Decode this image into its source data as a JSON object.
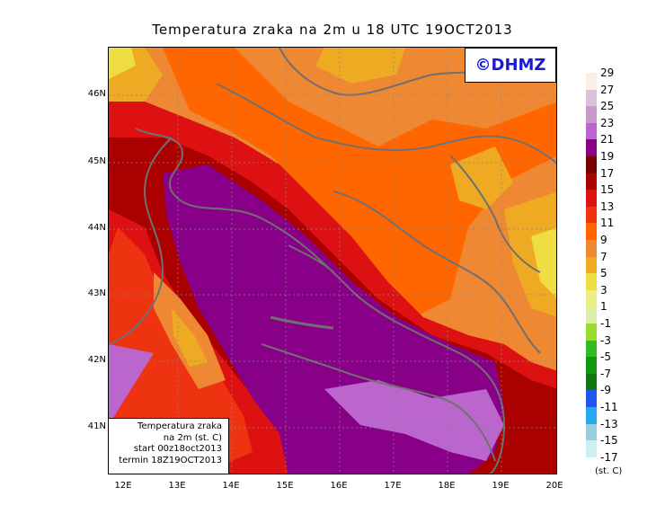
{
  "title": "Temperatura zraka na 2m u 18 UTC 19OCT2013",
  "logo": "©DHMZ",
  "infobox": {
    "line1": "Temperatura zraka",
    "line2": "na 2m (st. C)",
    "line3": "start 00z18oct2013",
    "line4": "termin 18Z19OCT2013"
  },
  "lat_labels": [
    "46N",
    "45N",
    "44N",
    "43N",
    "42N",
    "41N"
  ],
  "lon_labels": [
    "12E",
    "13E",
    "14E",
    "15E",
    "16E",
    "17E",
    "18E",
    "19E",
    "20E"
  ],
  "legend": {
    "labels": [
      "29",
      "27",
      "25",
      "23",
      "21",
      "19",
      "17",
      "15",
      "13",
      "11",
      "9",
      "7",
      "5",
      "3",
      "1",
      "-1",
      "-3",
      "-5",
      "-7",
      "-9",
      "-11",
      "-13",
      "-15",
      "-17"
    ],
    "colors": [
      "#fbeee2",
      "#d9c2d9",
      "#cc99cc",
      "#bb66cc",
      "#880088",
      "#7a0000",
      "#aa0000",
      "#dd1111",
      "#ee3311",
      "#ff6600",
      "#ee8833",
      "#eeaa22",
      "#eedd44",
      "#eeee88",
      "#ddeeaa",
      "#99dd33",
      "#33bb22",
      "#119911",
      "#117711",
      "#2255ee",
      "#22aaee",
      "#99ccdd",
      "#ccf0f0",
      "#eafafa"
    ],
    "unit": "(st. C)"
  }
}
